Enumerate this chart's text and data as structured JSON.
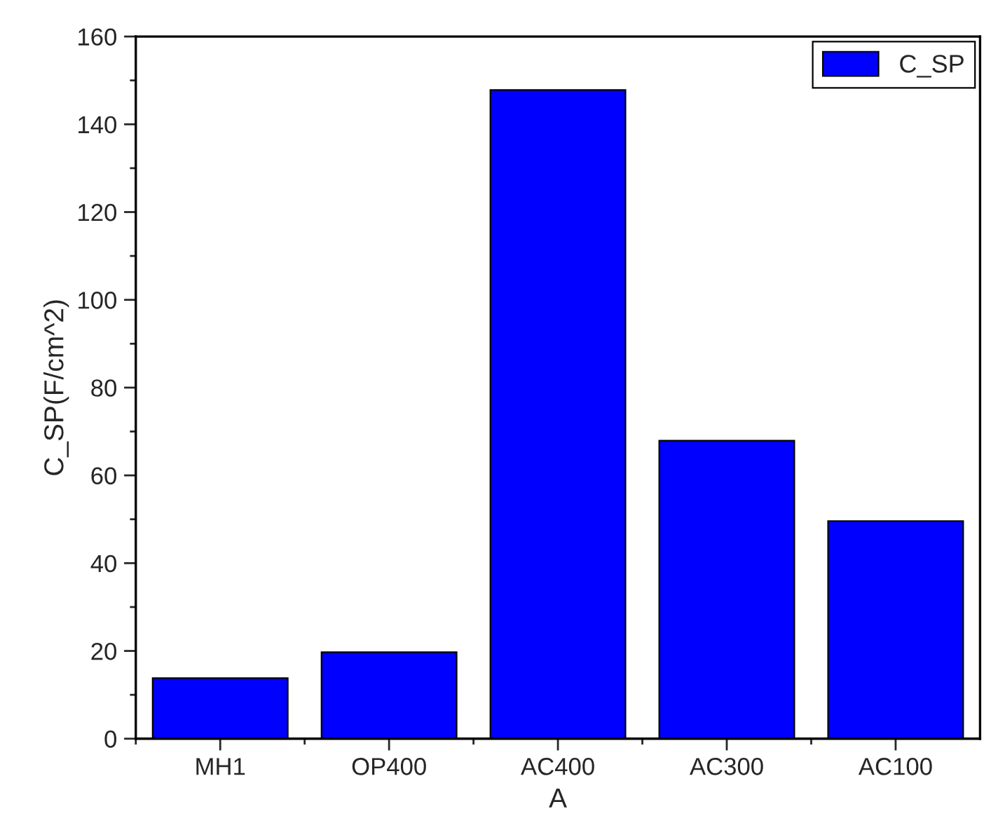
{
  "chart_data": {
    "type": "bar",
    "xlabel": "A",
    "ylabel": "C_SP(F/cm^2)",
    "categories": [
      "MH1",
      "OP400",
      "AC400",
      "AC300",
      "AC100"
    ],
    "series": [
      {
        "name": "C_SP",
        "color": "#0000ff",
        "values": [
          13.8,
          19.7,
          147.8,
          67.9,
          49.6
        ]
      }
    ],
    "ylim": [
      0,
      160
    ],
    "yticks": [
      0,
      20,
      40,
      60,
      80,
      100,
      120,
      140,
      160
    ],
    "grid": false,
    "legend": "top right"
  }
}
